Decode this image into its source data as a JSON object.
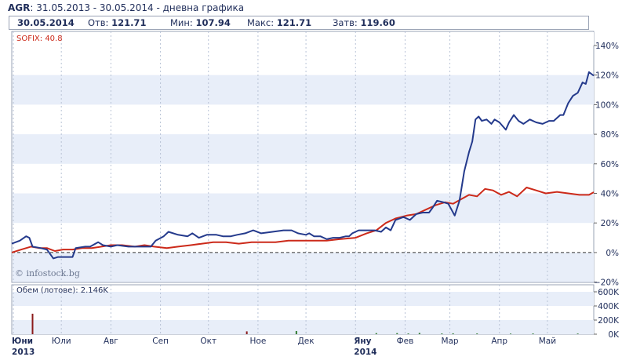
{
  "header": {
    "ticker": "AGR",
    "period": "31.05.2013 - 30.05.2014 - дневна графика"
  },
  "stats": {
    "date": "30.05.2014",
    "open_label": "Отв:",
    "open_value": "121.71",
    "min_label": "Мин:",
    "min_value": "107.94",
    "max_label": "Макс:",
    "max_value": "121.71",
    "close_label": "Затв:",
    "close_value": "119.60"
  },
  "watermark": "© infostock.bg",
  "colors": {
    "agr": "#243a8c",
    "sofix": "#cc2a1a",
    "band": "#e8eef9",
    "grid": "#b9c3d6"
  },
  "chart_data": [
    {
      "type": "line",
      "legend_label": "SOFIX: 40.8",
      "y_ticks": [
        "140%",
        "120%",
        "100%",
        "80%",
        "60%",
        "40%",
        "20%",
        "0%",
        "−20%"
      ],
      "y_values": [
        140,
        120,
        100,
        80,
        60,
        40,
        20,
        0,
        -20
      ],
      "ylim": [
        -20,
        140
      ],
      "x_range": [
        "2013-05-31",
        "2014-05-30"
      ],
      "x_month_ticks": [
        {
          "label": "Юни",
          "date": "2013-06-01",
          "year": "2013"
        },
        {
          "label": "Юли",
          "date": "2013-07-01"
        },
        {
          "label": "Авг",
          "date": "2013-08-01"
        },
        {
          "label": "Сеп",
          "date": "2013-09-01"
        },
        {
          "label": "Окт",
          "date": "2013-10-01"
        },
        {
          "label": "Ное",
          "date": "2013-11-01"
        },
        {
          "label": "Дек",
          "date": "2013-12-01"
        },
        {
          "label": "Яну",
          "date": "2014-01-01",
          "year": "2014"
        },
        {
          "label": "Фев",
          "date": "2014-02-01"
        },
        {
          "label": "Мар",
          "date": "2014-03-01"
        },
        {
          "label": "Апр",
          "date": "2014-04-01"
        },
        {
          "label": "Май",
          "date": "2014-05-01"
        }
      ],
      "zero_line": "dashed",
      "series": [
        {
          "key": "agr",
          "points": [
            [
              "2013-05-31",
              6
            ],
            [
              "2013-06-05",
              8
            ],
            [
              "2013-06-09",
              11
            ],
            [
              "2013-06-11",
              10
            ],
            [
              "2013-06-13",
              4
            ],
            [
              "2013-06-18",
              3
            ],
            [
              "2013-06-22",
              2
            ],
            [
              "2013-06-26",
              -4
            ],
            [
              "2013-06-29",
              -3
            ],
            [
              "2013-07-04",
              -3
            ],
            [
              "2013-07-08",
              -3
            ],
            [
              "2013-07-10",
              3
            ],
            [
              "2013-07-16",
              4
            ],
            [
              "2013-07-19",
              4
            ],
            [
              "2013-07-24",
              7
            ],
            [
              "2013-07-27",
              5
            ],
            [
              "2013-08-01",
              4
            ],
            [
              "2013-08-05",
              5
            ],
            [
              "2013-08-12",
              4
            ],
            [
              "2013-08-20",
              4
            ],
            [
              "2013-08-26",
              4
            ],
            [
              "2013-08-29",
              8
            ],
            [
              "2013-09-03",
              11
            ],
            [
              "2013-09-06",
              14
            ],
            [
              "2013-09-12",
              12
            ],
            [
              "2013-09-18",
              11
            ],
            [
              "2013-09-21",
              13
            ],
            [
              "2013-09-25",
              10
            ],
            [
              "2013-09-30",
              12
            ],
            [
              "2013-10-06",
              12
            ],
            [
              "2013-10-10",
              11
            ],
            [
              "2013-10-15",
              11
            ],
            [
              "2013-10-19",
              12
            ],
            [
              "2013-10-24",
              13
            ],
            [
              "2013-10-29",
              15
            ],
            [
              "2013-11-03",
              13
            ],
            [
              "2013-11-10",
              14
            ],
            [
              "2013-11-17",
              15
            ],
            [
              "2013-11-22",
              15
            ],
            [
              "2013-11-26",
              13
            ],
            [
              "2013-12-01",
              12
            ],
            [
              "2013-12-03",
              13
            ],
            [
              "2013-12-06",
              11
            ],
            [
              "2013-12-10",
              11
            ],
            [
              "2013-12-14",
              9
            ],
            [
              "2013-12-18",
              10
            ],
            [
              "2013-12-22",
              10
            ],
            [
              "2013-12-26",
              11
            ],
            [
              "2013-12-28",
              11
            ],
            [
              "2013-12-30",
              13
            ],
            [
              "2014-01-03",
              15
            ],
            [
              "2014-01-08",
              15
            ],
            [
              "2014-01-13",
              15
            ],
            [
              "2014-01-17",
              14
            ],
            [
              "2014-01-20",
              17
            ],
            [
              "2014-01-23",
              15
            ],
            [
              "2014-01-26",
              22
            ],
            [
              "2014-01-31",
              24
            ],
            [
              "2014-02-04",
              22
            ],
            [
              "2014-02-08",
              26
            ],
            [
              "2014-02-12",
              27
            ],
            [
              "2014-02-16",
              27
            ],
            [
              "2014-02-18",
              30
            ],
            [
              "2014-02-21",
              35
            ],
            [
              "2014-02-25",
              34
            ],
            [
              "2014-02-28",
              33
            ],
            [
              "2014-03-02",
              29
            ],
            [
              "2014-03-04",
              25
            ],
            [
              "2014-03-07",
              35
            ],
            [
              "2014-03-10",
              55
            ],
            [
              "2014-03-13",
              68
            ],
            [
              "2014-03-15",
              75
            ],
            [
              "2014-03-17",
              90
            ],
            [
              "2014-03-19",
              92
            ],
            [
              "2014-03-21",
              89
            ],
            [
              "2014-03-24",
              90
            ],
            [
              "2014-03-27",
              87
            ],
            [
              "2014-03-29",
              90
            ],
            [
              "2014-04-01",
              88
            ],
            [
              "2014-04-05",
              83
            ],
            [
              "2014-04-07",
              88
            ],
            [
              "2014-04-10",
              93
            ],
            [
              "2014-04-13",
              89
            ],
            [
              "2014-04-16",
              87
            ],
            [
              "2014-04-20",
              90
            ],
            [
              "2014-04-24",
              88
            ],
            [
              "2014-04-28",
              87
            ],
            [
              "2014-05-02",
              89
            ],
            [
              "2014-05-05",
              89
            ],
            [
              "2014-05-09",
              93
            ],
            [
              "2014-05-11",
              93
            ],
            [
              "2014-05-14",
              101
            ],
            [
              "2014-05-17",
              106
            ],
            [
              "2014-05-20",
              108
            ],
            [
              "2014-05-23",
              115
            ],
            [
              "2014-05-25",
              114
            ],
            [
              "2014-05-27",
              122
            ],
            [
              "2014-05-30",
              119.6
            ]
          ]
        },
        {
          "key": "sofix",
          "points": [
            [
              "2013-05-31",
              0
            ],
            [
              "2013-06-06",
              2
            ],
            [
              "2013-06-12",
              4
            ],
            [
              "2013-06-17",
              3
            ],
            [
              "2013-06-22",
              3
            ],
            [
              "2013-06-27",
              1
            ],
            [
              "2013-07-02",
              2
            ],
            [
              "2013-07-08",
              2
            ],
            [
              "2013-07-14",
              3
            ],
            [
              "2013-07-20",
              3
            ],
            [
              "2013-07-26",
              4
            ],
            [
              "2013-08-01",
              5
            ],
            [
              "2013-08-08",
              5
            ],
            [
              "2013-08-16",
              4
            ],
            [
              "2013-08-22",
              5
            ],
            [
              "2013-08-28",
              4
            ],
            [
              "2013-09-05",
              3
            ],
            [
              "2013-09-12",
              4
            ],
            [
              "2013-09-20",
              5
            ],
            [
              "2013-09-27",
              6
            ],
            [
              "2013-10-04",
              7
            ],
            [
              "2013-10-12",
              7
            ],
            [
              "2013-10-20",
              6
            ],
            [
              "2013-10-28",
              7
            ],
            [
              "2013-11-05",
              7
            ],
            [
              "2013-11-12",
              7
            ],
            [
              "2013-11-20",
              8
            ],
            [
              "2013-11-28",
              8
            ],
            [
              "2013-12-06",
              8
            ],
            [
              "2013-12-14",
              8
            ],
            [
              "2013-12-22",
              9
            ],
            [
              "2014-01-01",
              10
            ],
            [
              "2014-01-08",
              13
            ],
            [
              "2014-01-14",
              15
            ],
            [
              "2014-01-20",
              20
            ],
            [
              "2014-01-26",
              23
            ],
            [
              "2014-02-02",
              25
            ],
            [
              "2014-02-08",
              26
            ],
            [
              "2014-02-14",
              29
            ],
            [
              "2014-02-20",
              32
            ],
            [
              "2014-02-26",
              34
            ],
            [
              "2014-03-03",
              33
            ],
            [
              "2014-03-08",
              36
            ],
            [
              "2014-03-13",
              39
            ],
            [
              "2014-03-18",
              38
            ],
            [
              "2014-03-23",
              43
            ],
            [
              "2014-03-28",
              42
            ],
            [
              "2014-04-02",
              39
            ],
            [
              "2014-04-07",
              41
            ],
            [
              "2014-04-12",
              38
            ],
            [
              "2014-04-18",
              44
            ],
            [
              "2014-04-24",
              42
            ],
            [
              "2014-04-30",
              40
            ],
            [
              "2014-05-07",
              41
            ],
            [
              "2014-05-14",
              40
            ],
            [
              "2014-05-21",
              39
            ],
            [
              "2014-05-27",
              39
            ],
            [
              "2014-05-30",
              40.8
            ]
          ]
        }
      ]
    },
    {
      "type": "bar",
      "legend_label": "Обем (лотове): 2.146K",
      "y_ticks": [
        "600K",
        "400K",
        "200K",
        "0K"
      ],
      "y_values": [
        600000,
        400000,
        200000,
        0
      ],
      "ylim": [
        0,
        700000
      ],
      "bars": [
        {
          "date": "2013-06-13",
          "value": 290000,
          "color": "#8b1a1a"
        },
        {
          "date": "2013-10-25",
          "value": 40000,
          "color": "#8b1a1a"
        },
        {
          "date": "2013-11-25",
          "value": 45000,
          "color": "#2f7a2f"
        },
        {
          "date": "2014-01-14",
          "value": 15000,
          "color": "#2f7a2f"
        },
        {
          "date": "2014-01-27",
          "value": 15000,
          "color": "#2f7a2f"
        },
        {
          "date": "2014-02-03",
          "value": 10000,
          "color": "#2f7a2f"
        },
        {
          "date": "2014-02-10",
          "value": 18000,
          "color": "#2f7a2f"
        },
        {
          "date": "2014-02-24",
          "value": 10000,
          "color": "#2f7a2f"
        },
        {
          "date": "2014-03-03",
          "value": 12000,
          "color": "#2f7a2f"
        },
        {
          "date": "2014-03-18",
          "value": 10000,
          "color": "#2f7a2f"
        },
        {
          "date": "2014-04-08",
          "value": 8000,
          "color": "#2f7a2f"
        },
        {
          "date": "2014-04-22",
          "value": 10000,
          "color": "#2f7a2f"
        },
        {
          "date": "2014-05-20",
          "value": 9000,
          "color": "#2f7a2f"
        }
      ]
    }
  ]
}
